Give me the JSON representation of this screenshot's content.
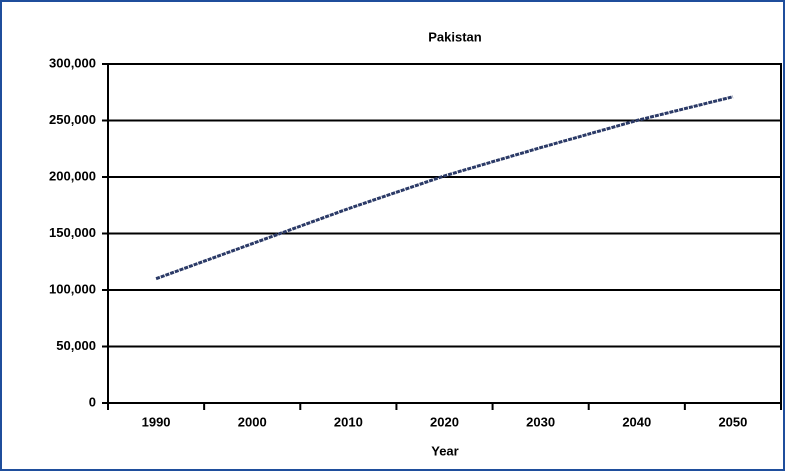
{
  "chart_data": {
    "type": "line",
    "title": "Pakistan",
    "x_label": "Year",
    "categories": [
      "1990",
      "2000",
      "2010",
      "2020",
      "2030",
      "2040",
      "2050"
    ],
    "series": [
      {
        "name": "Pakistan",
        "color": "#2b3a67",
        "values": [
          110000,
          141000,
          172000,
          201000,
          226000,
          250000,
          271000
        ]
      }
    ],
    "ylim": [
      0,
      300000
    ],
    "yticks": [
      0,
      {
        "value": 50000,
        "label": "50,000"
      },
      {
        "value": 100000,
        "label": "100,000"
      },
      {
        "value": 150000,
        "label": "150,000"
      },
      {
        "value": 200000,
        "label": "200,000"
      },
      {
        "value": 250000,
        "label": "250,000"
      },
      {
        "value": 300000,
        "label": "300,000"
      }
    ],
    "grid": true
  }
}
